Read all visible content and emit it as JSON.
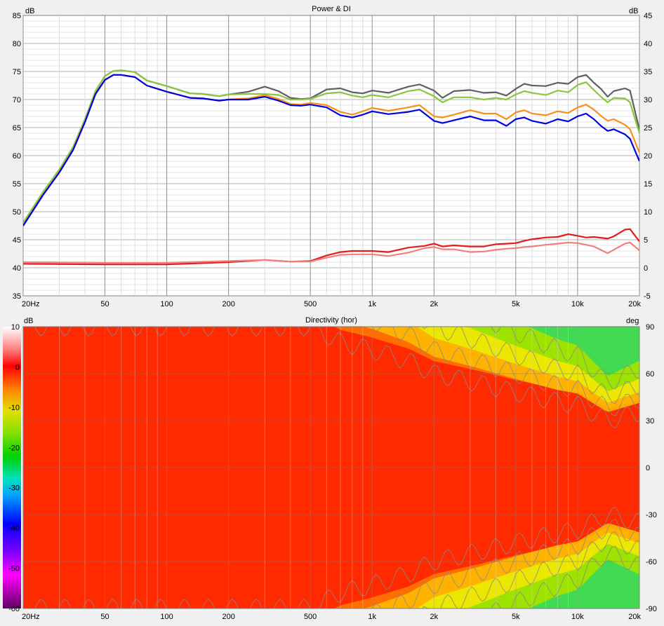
{
  "chart_data": [
    {
      "type": "line",
      "title": "Power & DI",
      "x_unit_label": "20Hz",
      "xscale": "log",
      "xlim": [
        20,
        20000
      ],
      "x_ticks": [
        {
          "v": 20,
          "label": "20Hz"
        },
        {
          "v": 50,
          "label": "50"
        },
        {
          "v": 100,
          "label": "100"
        },
        {
          "v": 200,
          "label": "200"
        },
        {
          "v": 500,
          "label": "500"
        },
        {
          "v": 1000,
          "label": "1k"
        },
        {
          "v": 2000,
          "label": "2k"
        },
        {
          "v": 5000,
          "label": "5k"
        },
        {
          "v": 10000,
          "label": "10k"
        },
        {
          "v": 20000,
          "label": "20k"
        }
      ],
      "ylabel_left": "dB",
      "ylabel_right": "dB",
      "ylim_left": [
        35,
        85
      ],
      "ylim_right": [
        -5,
        45
      ],
      "y_ticks_left": [
        "35",
        "40",
        "45",
        "50",
        "55",
        "60",
        "65",
        "70",
        "75",
        "80",
        "85"
      ],
      "y_ticks_right": [
        "-5",
        "0",
        "5",
        "10",
        "15",
        "20",
        "25",
        "30",
        "35",
        "40",
        "45"
      ],
      "grid": true,
      "series": [
        {
          "axis": "left",
          "color": "#606060",
          "x": [
            20,
            25,
            30,
            35,
            40,
            45,
            50,
            55,
            60,
            70,
            80,
            100,
            130,
            150,
            180,
            200,
            250,
            300,
            350,
            400,
            450,
            500,
            600,
            700,
            800,
            900,
            1000,
            1200,
            1500,
            1700,
            2000,
            2200,
            2500,
            3000,
            3500,
            4000,
            4500,
            5000,
            5500,
            6000,
            7000,
            8000,
            9000,
            10000,
            11000,
            12000,
            13000,
            14000,
            15000,
            17000,
            18000,
            20000
          ],
          "y": [
            48,
            53.5,
            57.5,
            61.5,
            66.5,
            71.5,
            74.2,
            75.1,
            75.2,
            74.9,
            73.4,
            72.4,
            71.1,
            71.0,
            70.6,
            70.9,
            71.4,
            72.3,
            71.5,
            70.3,
            70.1,
            70.2,
            71.8,
            72.0,
            71.3,
            71.1,
            71.6,
            71.2,
            72.3,
            72.7,
            71.6,
            70.3,
            71.5,
            71.7,
            71.2,
            71.3,
            70.7,
            71.9,
            72.8,
            72.5,
            72.4,
            73.0,
            72.8,
            74.0,
            74.4,
            73.0,
            71.9,
            70.5,
            71.5,
            72.0,
            71.6,
            64.6
          ]
        },
        {
          "axis": "left",
          "color": "#8cc63f",
          "x": [
            20,
            25,
            30,
            35,
            40,
            45,
            50,
            55,
            60,
            70,
            80,
            100,
            130,
            150,
            180,
            200,
            250,
            300,
            350,
            400,
            450,
            500,
            600,
            700,
            800,
            900,
            1000,
            1200,
            1500,
            1700,
            2000,
            2200,
            2500,
            3000,
            3500,
            4000,
            4500,
            5000,
            5500,
            6000,
            7000,
            8000,
            9000,
            10000,
            11000,
            12000,
            13000,
            14000,
            15000,
            17000,
            18000,
            20000
          ],
          "y": [
            48,
            53.5,
            57.5,
            61.5,
            66.5,
            71.5,
            74.2,
            75.1,
            75.2,
            74.9,
            73.4,
            72.4,
            71.1,
            71.0,
            70.6,
            70.9,
            71.0,
            71.0,
            70.8,
            70.0,
            70.0,
            70.1,
            71.1,
            71.3,
            70.7,
            70.4,
            70.8,
            70.4,
            71.5,
            71.8,
            70.6,
            69.5,
            70.4,
            70.4,
            70.0,
            70.3,
            70.0,
            70.9,
            71.5,
            71.2,
            70.8,
            71.6,
            71.3,
            72.6,
            73.1,
            71.7,
            70.5,
            69.5,
            70.3,
            70.2,
            69.5,
            64.0
          ]
        },
        {
          "axis": "left",
          "color": "#f7901e",
          "x": [
            20,
            25,
            30,
            35,
            40,
            45,
            50,
            55,
            60,
            70,
            80,
            100,
            130,
            150,
            180,
            200,
            250,
            300,
            350,
            400,
            450,
            500,
            600,
            700,
            800,
            900,
            1000,
            1200,
            1500,
            1700,
            2000,
            2200,
            2500,
            3000,
            3500,
            4000,
            4500,
            5000,
            5500,
            6000,
            7000,
            8000,
            9000,
            10000,
            11000,
            12000,
            13000,
            14000,
            15000,
            17000,
            18000,
            20000
          ],
          "y": [
            47.5,
            53,
            57,
            61,
            66,
            71,
            73.5,
            74.4,
            74.4,
            74.0,
            72.5,
            71.4,
            70.3,
            70.2,
            69.8,
            70.0,
            70.2,
            70.8,
            70.1,
            69.2,
            69.1,
            69.4,
            69.0,
            67.8,
            67.3,
            67.9,
            68.5,
            68.0,
            68.6,
            69.0,
            67.0,
            66.8,
            67.3,
            68.1,
            67.5,
            67.5,
            66.5,
            67.7,
            68.1,
            67.5,
            67.2,
            67.9,
            67.6,
            68.6,
            69.1,
            68.2,
            67.1,
            66.2,
            66.5,
            65.5,
            64.7,
            60.5
          ]
        },
        {
          "axis": "left",
          "color": "#0000e0",
          "x": [
            20,
            25,
            30,
            35,
            40,
            45,
            50,
            55,
            60,
            70,
            80,
            100,
            130,
            150,
            180,
            200,
            250,
            300,
            350,
            400,
            450,
            500,
            600,
            700,
            800,
            900,
            1000,
            1200,
            1500,
            1700,
            2000,
            2200,
            2500,
            3000,
            3500,
            4000,
            4500,
            5000,
            5500,
            6000,
            7000,
            8000,
            9000,
            10000,
            11000,
            12000,
            13000,
            14000,
            15000,
            17000,
            18000,
            20000
          ],
          "y": [
            47.5,
            53,
            57,
            61,
            66,
            71,
            73.5,
            74.4,
            74.4,
            74.0,
            72.5,
            71.4,
            70.3,
            70.2,
            69.8,
            70.0,
            70.0,
            70.5,
            69.8,
            69.0,
            68.9,
            69.1,
            68.6,
            67.2,
            66.8,
            67.3,
            67.9,
            67.4,
            67.8,
            68.2,
            66.2,
            65.8,
            66.3,
            67.0,
            66.3,
            66.3,
            65.3,
            66.5,
            66.8,
            66.2,
            65.7,
            66.5,
            66.1,
            67.0,
            67.5,
            66.5,
            65.3,
            64.4,
            64.7,
            63.8,
            63.0,
            59.0
          ]
        },
        {
          "axis": "right",
          "color": "#e31c1c",
          "x": [
            20,
            50,
            100,
            200,
            300,
            400,
            500,
            600,
            700,
            800,
            1000,
            1200,
            1500,
            1800,
            2000,
            2200,
            2500,
            3000,
            3500,
            4000,
            4500,
            5000,
            5500,
            6000,
            7000,
            8000,
            9000,
            10000,
            11000,
            12000,
            14000,
            15000,
            17000,
            18000,
            20000
          ],
          "y": [
            0.7,
            0.6,
            0.6,
            1.0,
            1.4,
            1.1,
            1.2,
            2.2,
            2.8,
            3.0,
            3.0,
            2.8,
            3.6,
            3.9,
            4.3,
            3.8,
            4.0,
            3.8,
            3.8,
            4.2,
            4.3,
            4.4,
            4.8,
            5.1,
            5.4,
            5.5,
            6.0,
            5.7,
            5.4,
            5.5,
            5.2,
            5.6,
            6.8,
            6.9,
            4.7
          ]
        },
        {
          "axis": "right",
          "color": "#f08080",
          "x": [
            20,
            50,
            100,
            200,
            300,
            400,
            500,
            600,
            700,
            800,
            1000,
            1200,
            1500,
            1800,
            2000,
            2200,
            2500,
            3000,
            3500,
            4000,
            4500,
            5000,
            5500,
            6000,
            7000,
            8000,
            9000,
            10000,
            11000,
            12000,
            14000,
            15000,
            17000,
            18000,
            20000
          ],
          "y": [
            1.0,
            0.9,
            0.9,
            1.2,
            1.4,
            1.1,
            1.1,
            1.8,
            2.3,
            2.4,
            2.4,
            2.1,
            2.7,
            3.5,
            3.7,
            3.3,
            3.3,
            2.8,
            2.9,
            3.2,
            3.4,
            3.5,
            3.7,
            3.8,
            4.1,
            4.3,
            4.5,
            4.4,
            4.1,
            3.8,
            2.6,
            3.2,
            4.3,
            4.5,
            3.1
          ]
        }
      ]
    },
    {
      "type": "heatmap",
      "title": "Directivity (hor)",
      "x_unit_label": "20Hz",
      "xscale": "log",
      "xlim": [
        20,
        20000
      ],
      "x_ticks": [
        {
          "v": 20,
          "label": "20Hz"
        },
        {
          "v": 50,
          "label": "50"
        },
        {
          "v": 100,
          "label": "100"
        },
        {
          "v": 200,
          "label": "200"
        },
        {
          "v": 500,
          "label": "500"
        },
        {
          "v": 1000,
          "label": "1k"
        },
        {
          "v": 2000,
          "label": "2k"
        },
        {
          "v": 5000,
          "label": "5k"
        },
        {
          "v": 10000,
          "label": "10k"
        },
        {
          "v": 20000,
          "label": "20k"
        }
      ],
      "ylabel_right": "deg",
      "ylim": [
        -90,
        90
      ],
      "y_ticks": [
        "90",
        "60",
        "30",
        "0",
        "-30",
        "-60",
        "-90"
      ],
      "colorbar_label": "dB",
      "colorbar_range": [
        -60,
        10
      ],
      "colorbar_ticks": [
        "10",
        "0",
        "-10",
        "-20",
        "-30",
        "-40",
        "-50",
        "-60"
      ],
      "beamwidth_6db_deg": {
        "freq": [
          20,
          300,
          500,
          700,
          1000,
          1500,
          2000,
          3000,
          5000,
          8000,
          10000,
          14000,
          20000
        ],
        "half_angle": [
          90,
          90,
          90,
          80,
          75,
          68,
          60,
          55,
          48,
          42,
          40,
          30,
          35
        ]
      }
    }
  ]
}
